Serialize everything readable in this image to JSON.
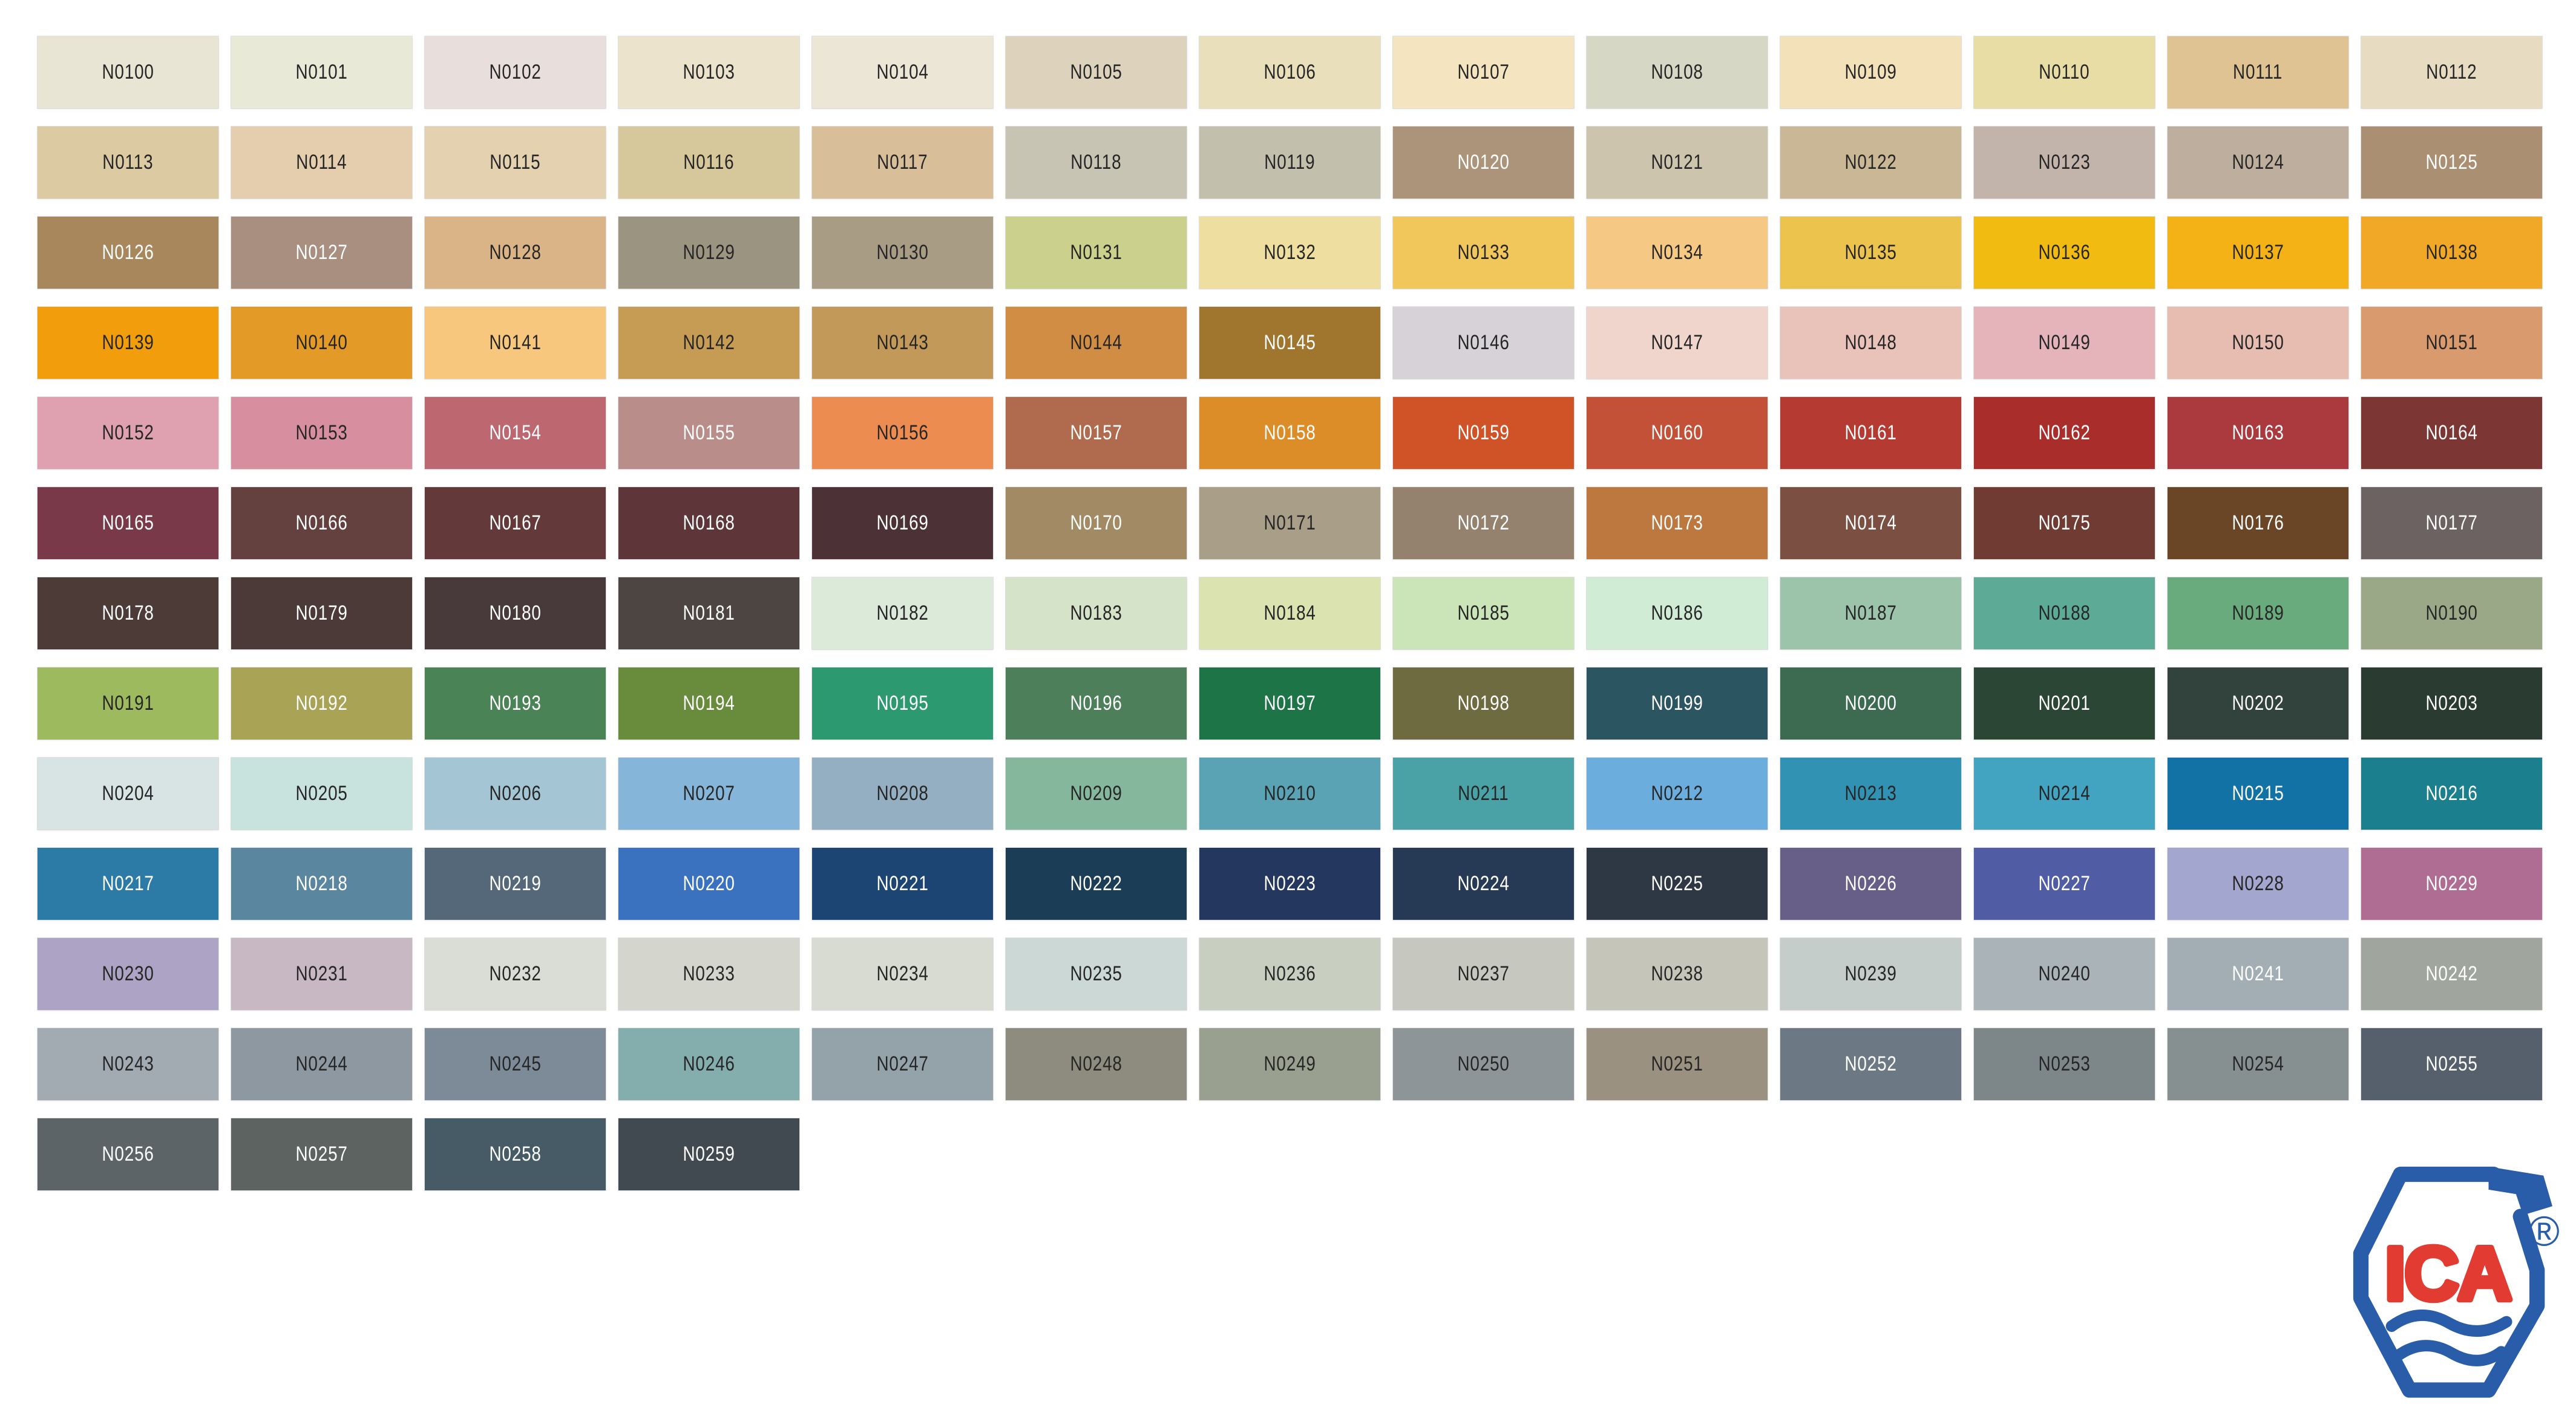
{
  "page": {
    "background": "#ffffff"
  },
  "logo": {
    "text": "ICA",
    "registered_mark": "®",
    "blue": "#2a5da9",
    "red": "#e23b31"
  },
  "swatches": [
    {
      "code": "N0100",
      "color": "#e8e5d4",
      "label": "#262626"
    },
    {
      "code": "N0101",
      "color": "#e9e9d8",
      "label": "#262626"
    },
    {
      "code": "N0102",
      "color": "#e8dfdc",
      "label": "#262626"
    },
    {
      "code": "N0103",
      "color": "#ece3cc",
      "label": "#262626"
    },
    {
      "code": "N0104",
      "color": "#ece6d6",
      "label": "#262626"
    },
    {
      "code": "N0105",
      "color": "#ddd3bd",
      "label": "#262626"
    },
    {
      "code": "N0106",
      "color": "#eadfbb",
      "label": "#262626"
    },
    {
      "code": "N0107",
      "color": "#f4e5c0",
      "label": "#262626"
    },
    {
      "code": "N0108",
      "color": "#d7d7c5",
      "label": "#262626"
    },
    {
      "code": "N0109",
      "color": "#f2e1b9",
      "label": "#262626"
    },
    {
      "code": "N0110",
      "color": "#e9dda6",
      "label": "#262626"
    },
    {
      "code": "N0111",
      "color": "#dfc392",
      "label": "#262626"
    },
    {
      "code": "N0112",
      "color": "#e7dbc2",
      "label": "#262626"
    },
    {
      "code": "N0113",
      "color": "#dccaa3",
      "label": "#262626"
    },
    {
      "code": "N0114",
      "color": "#e5cead",
      "label": "#262626"
    },
    {
      "code": "N0115",
      "color": "#e4d1b0",
      "label": "#262626"
    },
    {
      "code": "N0116",
      "color": "#d7c89c",
      "label": "#262626"
    },
    {
      "code": "N0117",
      "color": "#d8bf99",
      "label": "#262626"
    },
    {
      "code": "N0118",
      "color": "#c7c4b4",
      "label": "#262626"
    },
    {
      "code": "N0119",
      "color": "#c3bfad",
      "label": "#262626"
    },
    {
      "code": "N0120",
      "color": "#ab947a",
      "label": "#ffffff"
    },
    {
      "code": "N0121",
      "color": "#cdc4ae",
      "label": "#262626"
    },
    {
      "code": "N0122",
      "color": "#c9b796",
      "label": "#262626"
    },
    {
      "code": "N0123",
      "color": "#c3b4ab",
      "label": "#262626"
    },
    {
      "code": "N0124",
      "color": "#bdae9e",
      "label": "#262626"
    },
    {
      "code": "N0125",
      "color": "#aa8f73",
      "label": "#ffffff"
    },
    {
      "code": "N0126",
      "color": "#a8875c",
      "label": "#ffffff"
    },
    {
      "code": "N0127",
      "color": "#a98f80",
      "label": "#ffffff"
    },
    {
      "code": "N0128",
      "color": "#dab486",
      "label": "#262626"
    },
    {
      "code": "N0129",
      "color": "#9b9480",
      "label": "#262626"
    },
    {
      "code": "N0130",
      "color": "#a89c85",
      "label": "#262626"
    },
    {
      "code": "N0131",
      "color": "#cbd08c",
      "label": "#262626"
    },
    {
      "code": "N0132",
      "color": "#eedfa0",
      "label": "#262626"
    },
    {
      "code": "N0133",
      "color": "#f1c75c",
      "label": "#262626"
    },
    {
      "code": "N0134",
      "color": "#f5c983",
      "label": "#262626"
    },
    {
      "code": "N0135",
      "color": "#ecc34d",
      "label": "#262626"
    },
    {
      "code": "N0136",
      "color": "#f2bb12",
      "label": "#262626"
    },
    {
      "code": "N0137",
      "color": "#f4b216",
      "label": "#262626"
    },
    {
      "code": "N0138",
      "color": "#f1a826",
      "label": "#262626"
    },
    {
      "code": "N0139",
      "color": "#f19d0c",
      "label": "#262626"
    },
    {
      "code": "N0140",
      "color": "#e39a27",
      "label": "#262626"
    },
    {
      "code": "N0141",
      "color": "#f7c77d",
      "label": "#262626"
    },
    {
      "code": "N0142",
      "color": "#c69c55",
      "label": "#262626"
    },
    {
      "code": "N0143",
      "color": "#c39959",
      "label": "#262626"
    },
    {
      "code": "N0144",
      "color": "#d18d43",
      "label": "#262626"
    },
    {
      "code": "N0145",
      "color": "#a0752e",
      "label": "#ffffff"
    },
    {
      "code": "N0146",
      "color": "#d6d2d8",
      "label": "#262626"
    },
    {
      "code": "N0147",
      "color": "#f0d5cd",
      "label": "#262626"
    },
    {
      "code": "N0148",
      "color": "#e9c2ba",
      "label": "#262626"
    },
    {
      "code": "N0149",
      "color": "#e4b4ba",
      "label": "#262626"
    },
    {
      "code": "N0150",
      "color": "#e7bcb1",
      "label": "#262626"
    },
    {
      "code": "N0151",
      "color": "#d99a6e",
      "label": "#262626"
    },
    {
      "code": "N0152",
      "color": "#dfa0af",
      "label": "#262626"
    },
    {
      "code": "N0153",
      "color": "#d78fa0",
      "label": "#262626"
    },
    {
      "code": "N0154",
      "color": "#bd6770",
      "label": "#ffffff"
    },
    {
      "code": "N0155",
      "color": "#b98d8a",
      "label": "#ffffff"
    },
    {
      "code": "N0156",
      "color": "#ec8c51",
      "label": "#262626"
    },
    {
      "code": "N0157",
      "color": "#b06a4d",
      "label": "#ffffff"
    },
    {
      "code": "N0158",
      "color": "#dd8d27",
      "label": "#ffffff"
    },
    {
      "code": "N0159",
      "color": "#d05327",
      "label": "#ffffff"
    },
    {
      "code": "N0160",
      "color": "#c35138",
      "label": "#ffffff"
    },
    {
      "code": "N0161",
      "color": "#b43a32",
      "label": "#ffffff"
    },
    {
      "code": "N0162",
      "color": "#a92e2b",
      "label": "#ffffff"
    },
    {
      "code": "N0163",
      "color": "#aa3a3e",
      "label": "#ffffff"
    },
    {
      "code": "N0164",
      "color": "#7c3634",
      "label": "#ffffff"
    },
    {
      "code": "N0165",
      "color": "#7a3948",
      "label": "#ffffff"
    },
    {
      "code": "N0166",
      "color": "#64403f",
      "label": "#ffffff"
    },
    {
      "code": "N0167",
      "color": "#633a39",
      "label": "#ffffff"
    },
    {
      "code": "N0168",
      "color": "#5e3639",
      "label": "#ffffff"
    },
    {
      "code": "N0169",
      "color": "#4c3136",
      "label": "#ffffff"
    },
    {
      "code": "N0170",
      "color": "#a18a64",
      "label": "#ffffff"
    },
    {
      "code": "N0171",
      "color": "#a99e88",
      "label": "#262626"
    },
    {
      "code": "N0172",
      "color": "#94826f",
      "label": "#ffffff"
    },
    {
      "code": "N0173",
      "color": "#bd7840",
      "label": "#ffffff"
    },
    {
      "code": "N0174",
      "color": "#7c4f43",
      "label": "#ffffff"
    },
    {
      "code": "N0175",
      "color": "#6f3b33",
      "label": "#ffffff"
    },
    {
      "code": "N0176",
      "color": "#6b4626",
      "label": "#ffffff"
    },
    {
      "code": "N0177",
      "color": "#6b6261",
      "label": "#ffffff"
    },
    {
      "code": "N0178",
      "color": "#4c3b37",
      "label": "#ffffff"
    },
    {
      "code": "N0179",
      "color": "#4b3a37",
      "label": "#ffffff"
    },
    {
      "code": "N0180",
      "color": "#483a3a",
      "label": "#ffffff"
    },
    {
      "code": "N0181",
      "color": "#4c4541",
      "label": "#ffffff"
    },
    {
      "code": "N0182",
      "color": "#dcead9",
      "label": "#262626"
    },
    {
      "code": "N0183",
      "color": "#d5e3c8",
      "label": "#262626"
    },
    {
      "code": "N0184",
      "color": "#dbe3b0",
      "label": "#262626"
    },
    {
      "code": "N0185",
      "color": "#cce5b8",
      "label": "#262626"
    },
    {
      "code": "N0186",
      "color": "#d1ecd4",
      "label": "#262626"
    },
    {
      "code": "N0187",
      "color": "#9cc4ab",
      "label": "#262626"
    },
    {
      "code": "N0188",
      "color": "#5dab97",
      "label": "#262626"
    },
    {
      "code": "N0189",
      "color": "#6aab7d",
      "label": "#262626"
    },
    {
      "code": "N0190",
      "color": "#9aa887",
      "label": "#262626"
    },
    {
      "code": "N0191",
      "color": "#9eba5e",
      "label": "#262626"
    },
    {
      "code": "N0192",
      "color": "#a8a355",
      "label": "#ffffff"
    },
    {
      "code": "N0193",
      "color": "#4a8456",
      "label": "#ffffff"
    },
    {
      "code": "N0194",
      "color": "#688c3c",
      "label": "#ffffff"
    },
    {
      "code": "N0195",
      "color": "#2d9970",
      "label": "#ffffff"
    },
    {
      "code": "N0196",
      "color": "#4c7f5a",
      "label": "#ffffff"
    },
    {
      "code": "N0197",
      "color": "#1c7447",
      "label": "#ffffff"
    },
    {
      "code": "N0198",
      "color": "#6f6b40",
      "label": "#ffffff"
    },
    {
      "code": "N0199",
      "color": "#2b5561",
      "label": "#ffffff"
    },
    {
      "code": "N0200",
      "color": "#3d6b52",
      "label": "#ffffff"
    },
    {
      "code": "N0201",
      "color": "#2b4634",
      "label": "#ffffff"
    },
    {
      "code": "N0202",
      "color": "#32423c",
      "label": "#ffffff"
    },
    {
      "code": "N0203",
      "color": "#2a3b31",
      "label": "#ffffff"
    },
    {
      "code": "N0204",
      "color": "#d7e4e3",
      "label": "#262626"
    },
    {
      "code": "N0205",
      "color": "#c8e2de",
      "label": "#262626"
    },
    {
      "code": "N0206",
      "color": "#a3c5d4",
      "label": "#262626"
    },
    {
      "code": "N0207",
      "color": "#85b5d8",
      "label": "#262626"
    },
    {
      "code": "N0208",
      "color": "#93afc1",
      "label": "#262626"
    },
    {
      "code": "N0209",
      "color": "#85b79d",
      "label": "#262626"
    },
    {
      "code": "N0210",
      "color": "#59a3b4",
      "label": "#262626"
    },
    {
      "code": "N0211",
      "color": "#4aa2a7",
      "label": "#262626"
    },
    {
      "code": "N0212",
      "color": "#6baedd",
      "label": "#262626"
    },
    {
      "code": "N0213",
      "color": "#3292b4",
      "label": "#262626"
    },
    {
      "code": "N0214",
      "color": "#42a4c0",
      "label": "#262626"
    },
    {
      "code": "N0215",
      "color": "#1272a5",
      "label": "#ffffff"
    },
    {
      "code": "N0216",
      "color": "#1b7f8d",
      "label": "#ffffff"
    },
    {
      "code": "N0217",
      "color": "#2b7ba6",
      "label": "#ffffff"
    },
    {
      "code": "N0218",
      "color": "#5b86a0",
      "label": "#ffffff"
    },
    {
      "code": "N0219",
      "color": "#55687a",
      "label": "#ffffff"
    },
    {
      "code": "N0220",
      "color": "#3a72c0",
      "label": "#ffffff"
    },
    {
      "code": "N0221",
      "color": "#1d4573",
      "label": "#ffffff"
    },
    {
      "code": "N0222",
      "color": "#1c3d56",
      "label": "#ffffff"
    },
    {
      "code": "N0223",
      "color": "#24375e",
      "label": "#ffffff"
    },
    {
      "code": "N0224",
      "color": "#263a56",
      "label": "#ffffff"
    },
    {
      "code": "N0225",
      "color": "#2d3844",
      "label": "#ffffff"
    },
    {
      "code": "N0226",
      "color": "#675f87",
      "label": "#ffffff"
    },
    {
      "code": "N0227",
      "color": "#505da5",
      "label": "#ffffff"
    },
    {
      "code": "N0228",
      "color": "#a3a6cf",
      "label": "#262626"
    },
    {
      "code": "N0229",
      "color": "#b06d94",
      "label": "#ffffff"
    },
    {
      "code": "N0230",
      "color": "#ada4c5",
      "label": "#262626"
    },
    {
      "code": "N0231",
      "color": "#c7b8c4",
      "label": "#262626"
    },
    {
      "code": "N0232",
      "color": "#d9ddd5",
      "label": "#262626"
    },
    {
      "code": "N0233",
      "color": "#d4d6cd",
      "label": "#262626"
    },
    {
      "code": "N0234",
      "color": "#d8dbd1",
      "label": "#262626"
    },
    {
      "code": "N0235",
      "color": "#ccd8d5",
      "label": "#262626"
    },
    {
      "code": "N0236",
      "color": "#c8cfc1",
      "label": "#262626"
    },
    {
      "code": "N0237",
      "color": "#c6c8c0",
      "label": "#262626"
    },
    {
      "code": "N0238",
      "color": "#c5c5b9",
      "label": "#262626"
    },
    {
      "code": "N0239",
      "color": "#c4cdc9",
      "label": "#262626"
    },
    {
      "code": "N0240",
      "color": "#aab3b7",
      "label": "#262626"
    },
    {
      "code": "N0241",
      "color": "#a3aeb4",
      "label": "#ffffff"
    },
    {
      "code": "N0242",
      "color": "#a0a69e",
      "label": "#ffffff"
    },
    {
      "code": "N0243",
      "color": "#a2abb1",
      "label": "#262626"
    },
    {
      "code": "N0244",
      "color": "#8d98a0",
      "label": "#262626"
    },
    {
      "code": "N0245",
      "color": "#7d8b99",
      "label": "#262626"
    },
    {
      "code": "N0246",
      "color": "#84aead",
      "label": "#262626"
    },
    {
      "code": "N0247",
      "color": "#94a3a9",
      "label": "#262626"
    },
    {
      "code": "N0248",
      "color": "#8d8c7f",
      "label": "#262626"
    },
    {
      "code": "N0249",
      "color": "#9aa090",
      "label": "#262626"
    },
    {
      "code": "N0250",
      "color": "#8e9598",
      "label": "#262626"
    },
    {
      "code": "N0251",
      "color": "#9a9180",
      "label": "#262626"
    },
    {
      "code": "N0252",
      "color": "#6c7984",
      "label": "#ffffff"
    },
    {
      "code": "N0253",
      "color": "#7d8689",
      "label": "#262626"
    },
    {
      "code": "N0254",
      "color": "#879091",
      "label": "#262626"
    },
    {
      "code": "N0255",
      "color": "#55606c",
      "label": "#ffffff"
    },
    {
      "code": "N0256",
      "color": "#5c6468",
      "label": "#ffffff"
    },
    {
      "code": "N0257",
      "color": "#5d6360",
      "label": "#ffffff"
    },
    {
      "code": "N0258",
      "color": "#475b66",
      "label": "#ffffff"
    },
    {
      "code": "N0259",
      "color": "#424a51",
      "label": "#ffffff"
    }
  ]
}
